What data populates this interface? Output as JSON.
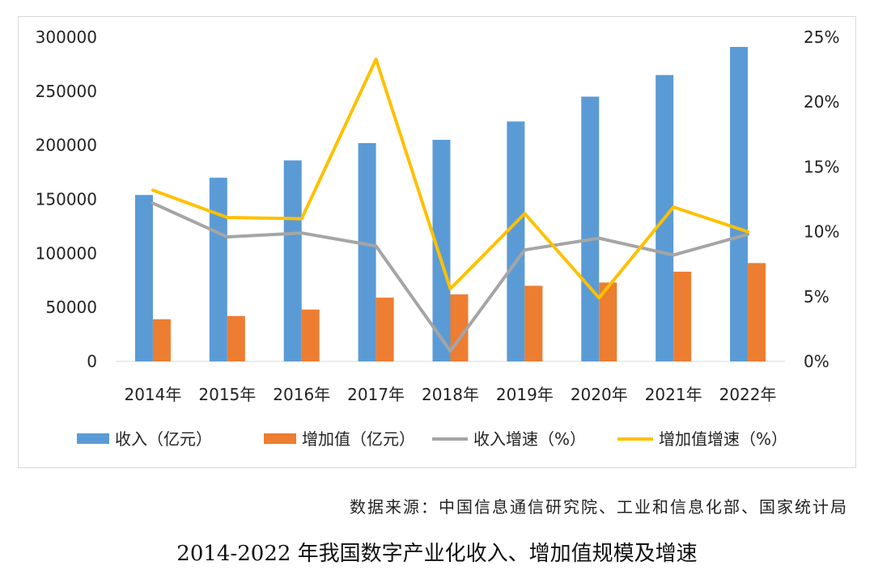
{
  "chart_data": {
    "type": "bar",
    "categories": [
      "2014年",
      "2015年",
      "2016年",
      "2017年",
      "2018年",
      "2019年",
      "2020年",
      "2021年",
      "2022年"
    ],
    "series": [
      {
        "name": "收入（亿元）",
        "type": "bar",
        "axis": "left",
        "color": "#5B9BD5",
        "values": [
          154000,
          170000,
          186000,
          202000,
          205000,
          222000,
          245000,
          265000,
          291000
        ]
      },
      {
        "name": "增加值（亿元）",
        "type": "bar",
        "axis": "left",
        "color": "#ED7D31",
        "values": [
          39000,
          42000,
          48000,
          59000,
          62000,
          70000,
          73000,
          83000,
          91000
        ]
      },
      {
        "name": "收入增速（%）",
        "type": "line",
        "axis": "right",
        "color": "#A5A5A5",
        "values": [
          12.2,
          9.6,
          9.9,
          8.9,
          0.8,
          8.6,
          9.5,
          8.2,
          9.8
        ]
      },
      {
        "name": "增加值增速（%）",
        "type": "line",
        "axis": "right",
        "color": "#FFC000",
        "values": [
          13.2,
          11.1,
          11.0,
          23.3,
          5.6,
          11.4,
          4.9,
          11.9,
          10.0
        ]
      }
    ],
    "y_left": {
      "min": 0,
      "max": 300000,
      "ticks": [
        "0",
        "50000",
        "100000",
        "150000",
        "200000",
        "250000",
        "300000"
      ]
    },
    "y_right": {
      "min": 0,
      "max": 25,
      "ticks": [
        "0%",
        "5%",
        "10%",
        "15%",
        "20%",
        "25%"
      ]
    },
    "legend_position": "bottom",
    "grid": false
  },
  "source_text": "数据来源：中国信息通信研究院、工业和信息化部、国家统计局",
  "caption_text": "2014-2022 年我国数字产业化收入、增加值规模及增速"
}
